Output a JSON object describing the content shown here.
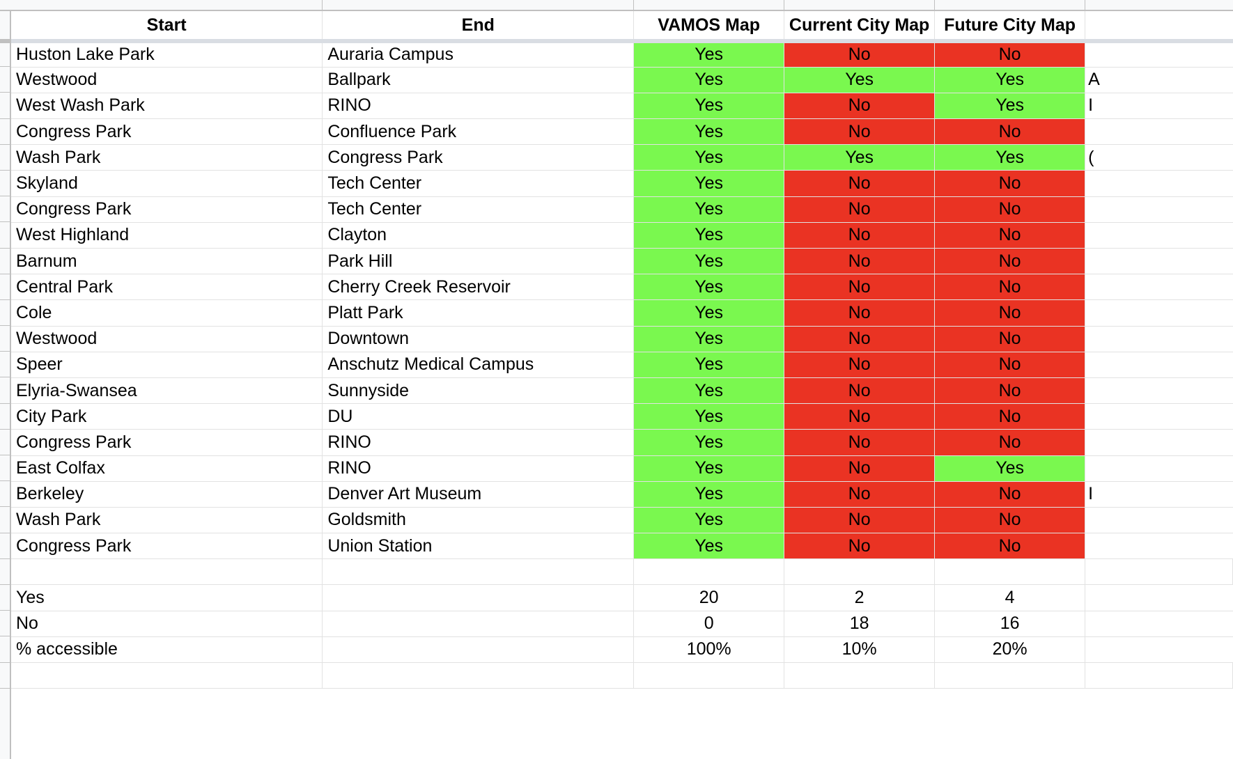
{
  "headers": {
    "start": "Start",
    "end": "End",
    "vamos": "VAMOS Map",
    "current": "Current City Map",
    "future": "Future City Map"
  },
  "rows": [
    {
      "start": "Huston Lake Park",
      "end": "Auraria Campus",
      "vamos": "Yes",
      "current": "No",
      "future": "No",
      "overflow": ""
    },
    {
      "start": "Westwood",
      "end": "Ballpark",
      "vamos": "Yes",
      "current": "Yes",
      "future": "Yes",
      "overflow": "A"
    },
    {
      "start": "West Wash Park",
      "end": "RINO",
      "vamos": "Yes",
      "current": "No",
      "future": "Yes",
      "overflow": "I"
    },
    {
      "start": "Congress Park",
      "end": "Confluence Park",
      "vamos": "Yes",
      "current": "No",
      "future": "No",
      "overflow": ""
    },
    {
      "start": "Wash Park",
      "end": "Congress Park",
      "vamos": "Yes",
      "current": "Yes",
      "future": "Yes",
      "overflow": "("
    },
    {
      "start": "Skyland",
      "end": "Tech Center",
      "vamos": "Yes",
      "current": "No",
      "future": "No",
      "overflow": ""
    },
    {
      "start": "Congress Park",
      "end": "Tech Center",
      "vamos": "Yes",
      "current": "No",
      "future": "No",
      "overflow": ""
    },
    {
      "start": "West Highland",
      "end": "Clayton",
      "vamos": "Yes",
      "current": "No",
      "future": "No",
      "overflow": ""
    },
    {
      "start": "Barnum",
      "end": "Park Hill",
      "vamos": "Yes",
      "current": "No",
      "future": "No",
      "overflow": ""
    },
    {
      "start": "Central Park",
      "end": "Cherry Creek Reservoir",
      "vamos": "Yes",
      "current": "No",
      "future": "No",
      "overflow": ""
    },
    {
      "start": "Cole",
      "end": "Platt Park",
      "vamos": "Yes",
      "current": "No",
      "future": "No",
      "overflow": ""
    },
    {
      "start": "Westwood",
      "end": "Downtown",
      "vamos": "Yes",
      "current": "No",
      "future": "No",
      "overflow": ""
    },
    {
      "start": "Speer",
      "end": "Anschutz Medical Campus",
      "vamos": "Yes",
      "current": "No",
      "future": "No",
      "overflow": ""
    },
    {
      "start": "Elyria-Swansea",
      "end": "Sunnyside",
      "vamos": "Yes",
      "current": "No",
      "future": "No",
      "overflow": ""
    },
    {
      "start": "City Park",
      "end": "DU",
      "vamos": "Yes",
      "current": "No",
      "future": "No",
      "overflow": ""
    },
    {
      "start": "Congress Park",
      "end": "RINO",
      "vamos": "Yes",
      "current": "No",
      "future": "No",
      "overflow": ""
    },
    {
      "start": "East Colfax",
      "end": "RINO",
      "vamos": "Yes",
      "current": "No",
      "future": "Yes",
      "overflow": ""
    },
    {
      "start": "Berkeley",
      "end": "Denver Art Museum",
      "vamos": "Yes",
      "current": "No",
      "future": "No",
      "overflow": "I"
    },
    {
      "start": "Wash Park",
      "end": "Goldsmith",
      "vamos": "Yes",
      "current": "No",
      "future": "No",
      "overflow": ""
    },
    {
      "start": "Congress Park",
      "end": "Union Station",
      "vamos": "Yes",
      "current": "No",
      "future": "No",
      "overflow": ""
    }
  ],
  "summary": [
    {
      "label": "Yes",
      "vamos": "20",
      "current": "2",
      "future": "4"
    },
    {
      "label": "No",
      "vamos": "0",
      "current": "18",
      "future": "16"
    },
    {
      "label": "% accessible",
      "vamos": "100%",
      "current": "10%",
      "future": "20%"
    }
  ],
  "colors": {
    "yes": "#7af84f",
    "no": "#ea3323"
  }
}
